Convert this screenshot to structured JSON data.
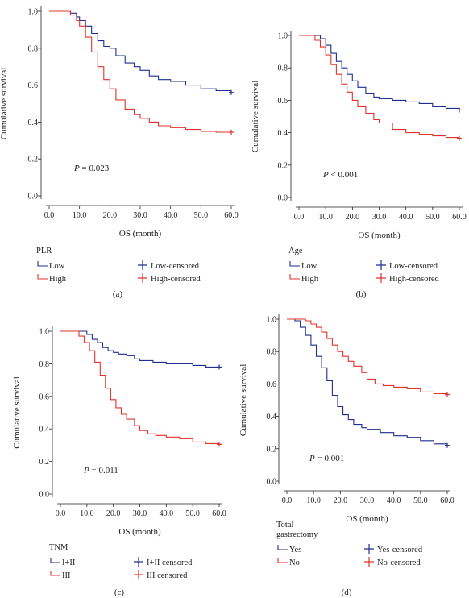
{
  "colors": {
    "low": "#1f2f8f",
    "high": "#e0332b",
    "axis": "#222222"
  },
  "chart_data": [
    {
      "type": "line",
      "panel_label": "(a)",
      "xlabel": "OS (month)",
      "ylabel": "Cumulative survival",
      "xlim": [
        0,
        60
      ],
      "ylim": [
        0,
        1
      ],
      "xticks": [
        "0.0",
        "10.0",
        "20.0",
        "30.0",
        "40.0",
        "50.0",
        "60.0"
      ],
      "yticks": [
        "0.0",
        "0.2",
        "0.4",
        "0.6",
        "0.8",
        "1.0"
      ],
      "p_prefix": "P",
      "p_value": " = 0.023",
      "legend_title": [
        "PLR"
      ],
      "series": [
        {
          "name": "Low",
          "censored_label": "Low-censored",
          "color_key": "low",
          "x": [
            0,
            5,
            7,
            9,
            10,
            12,
            14,
            16,
            18,
            20,
            22,
            25,
            28,
            30,
            33,
            36,
            40,
            45,
            50,
            55,
            60
          ],
          "y": [
            1.0,
            1.0,
            0.99,
            0.97,
            0.95,
            0.92,
            0.88,
            0.84,
            0.81,
            0.8,
            0.76,
            0.72,
            0.7,
            0.68,
            0.65,
            0.63,
            0.62,
            0.6,
            0.58,
            0.57,
            0.56
          ]
        },
        {
          "name": "High",
          "censored_label": "High-censored",
          "color_key": "high",
          "x": [
            0,
            5,
            7,
            9,
            10,
            12,
            14,
            16,
            18,
            20,
            22,
            25,
            28,
            30,
            33,
            36,
            40,
            45,
            50,
            55,
            60
          ],
          "y": [
            1.0,
            1.0,
            0.98,
            0.95,
            0.92,
            0.86,
            0.78,
            0.7,
            0.63,
            0.58,
            0.52,
            0.47,
            0.44,
            0.42,
            0.4,
            0.38,
            0.37,
            0.36,
            0.35,
            0.345,
            0.345
          ]
        }
      ]
    },
    {
      "type": "line",
      "panel_label": "(b)",
      "xlabel": "OS (month)",
      "ylabel": "Cumulative survival",
      "xlim": [
        0,
        60
      ],
      "ylim": [
        0,
        1
      ],
      "xticks": [
        "0.0",
        "10.0",
        "20.0",
        "30.0",
        "40.0",
        "50.0",
        "60.0"
      ],
      "yticks": [
        "0.0",
        "0.2",
        "0.4",
        "0.6",
        "0.8",
        "1.0"
      ],
      "p_prefix": "P",
      "p_value": " < 0.001",
      "legend_title": [
        "Age"
      ],
      "series": [
        {
          "name": "Low",
          "censored_label": "Low-censored",
          "color_key": "low",
          "x": [
            0,
            5,
            8,
            10,
            12,
            14,
            16,
            18,
            20,
            22,
            25,
            28,
            30,
            35,
            40,
            45,
            50,
            55,
            60
          ],
          "y": [
            1.0,
            1.0,
            0.98,
            0.94,
            0.89,
            0.84,
            0.8,
            0.76,
            0.72,
            0.68,
            0.64,
            0.62,
            0.61,
            0.6,
            0.59,
            0.58,
            0.56,
            0.55,
            0.54
          ]
        },
        {
          "name": "High",
          "censored_label": "High-censored",
          "color_key": "high",
          "x": [
            0,
            3,
            6,
            8,
            10,
            12,
            14,
            16,
            18,
            20,
            22,
            25,
            28,
            30,
            35,
            40,
            45,
            50,
            55,
            60
          ],
          "y": [
            1.0,
            1.0,
            0.97,
            0.93,
            0.88,
            0.82,
            0.76,
            0.7,
            0.65,
            0.6,
            0.56,
            0.52,
            0.48,
            0.46,
            0.42,
            0.4,
            0.39,
            0.38,
            0.37,
            0.365
          ]
        }
      ]
    },
    {
      "type": "line",
      "panel_label": "(c)",
      "xlabel": "OS (month)",
      "ylabel": "Cumulative survival",
      "xlim": [
        0,
        60
      ],
      "ylim": [
        0,
        1
      ],
      "xticks": [
        "0.0",
        "10.0",
        "20.0",
        "30.0",
        "40.0",
        "50.0",
        "60.0"
      ],
      "yticks": [
        "0.0",
        "0.2",
        "0.4",
        "0.6",
        "0.8",
        "1.0"
      ],
      "p_prefix": "P",
      "p_value": " = 0.011",
      "legend_title": [
        "TNM"
      ],
      "series": [
        {
          "name": "I+II",
          "censored_label": "I+II censored",
          "color_key": "low",
          "x": [
            0,
            8,
            10,
            12,
            14,
            16,
            18,
            20,
            22,
            25,
            28,
            30,
            35,
            40,
            45,
            50,
            55,
            60
          ],
          "y": [
            1.0,
            1.0,
            0.98,
            0.95,
            0.93,
            0.9,
            0.88,
            0.87,
            0.86,
            0.85,
            0.83,
            0.82,
            0.81,
            0.8,
            0.8,
            0.79,
            0.78,
            0.78
          ]
        },
        {
          "name": "III",
          "censored_label": "III censored",
          "color_key": "high",
          "x": [
            0,
            5,
            7,
            9,
            11,
            13,
            15,
            17,
            19,
            21,
            23,
            25,
            28,
            30,
            33,
            36,
            40,
            45,
            50,
            55,
            60
          ],
          "y": [
            1.0,
            1.0,
            0.97,
            0.93,
            0.88,
            0.81,
            0.73,
            0.65,
            0.58,
            0.53,
            0.49,
            0.46,
            0.42,
            0.39,
            0.37,
            0.36,
            0.35,
            0.34,
            0.32,
            0.31,
            0.305
          ]
        }
      ]
    },
    {
      "type": "line",
      "panel_label": "(d)",
      "xlabel": "OS (month)",
      "ylabel": "Cumulative survival",
      "xlim": [
        0,
        60
      ],
      "ylim": [
        0,
        1
      ],
      "xticks": [
        "0.0",
        "10.0",
        "20.0",
        "30.0",
        "40.0",
        "50.0",
        "60.0"
      ],
      "yticks": [
        "0.0",
        "0.2",
        "0.4",
        "0.6",
        "0.8",
        "1.0"
      ],
      "p_prefix": "P",
      "p_value": " = 0.001",
      "legend_title": [
        "Total",
        "gastrectomy"
      ],
      "series": [
        {
          "name": "Yes",
          "censored_label": "Yes-censored",
          "color_key": "low",
          "x": [
            0,
            3,
            5,
            7,
            9,
            11,
            13,
            15,
            17,
            19,
            21,
            23,
            25,
            28,
            30,
            35,
            40,
            45,
            50,
            55,
            60
          ],
          "y": [
            1.0,
            0.99,
            0.95,
            0.9,
            0.84,
            0.77,
            0.7,
            0.62,
            0.53,
            0.46,
            0.41,
            0.38,
            0.35,
            0.33,
            0.32,
            0.3,
            0.28,
            0.27,
            0.25,
            0.23,
            0.22
          ]
        },
        {
          "name": "No",
          "censored_label": "No-censored",
          "color_key": "high",
          "x": [
            0,
            5,
            7,
            9,
            11,
            13,
            15,
            17,
            19,
            21,
            23,
            25,
            28,
            30,
            33,
            36,
            40,
            45,
            50,
            55,
            60
          ],
          "y": [
            1.0,
            1.0,
            0.99,
            0.97,
            0.95,
            0.92,
            0.88,
            0.84,
            0.8,
            0.77,
            0.74,
            0.71,
            0.67,
            0.63,
            0.6,
            0.59,
            0.58,
            0.57,
            0.55,
            0.54,
            0.535
          ]
        }
      ]
    }
  ]
}
